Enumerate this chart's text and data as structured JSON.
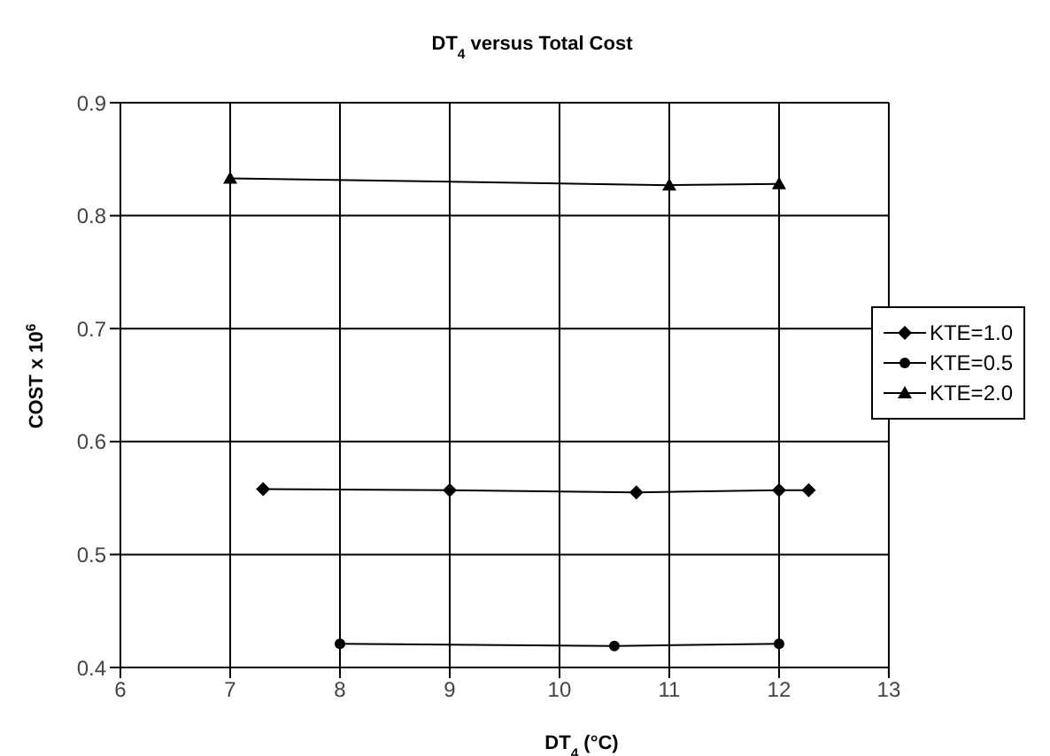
{
  "chart_data": {
    "type": "line",
    "title": "DT$_{4}$ versus Total Cost",
    "xlabel": "DT$_{4}$ (°C)",
    "ylabel": "COST x 10$^{6}$",
    "series": [
      {
        "name": "KTE=1.0",
        "color": "#000000",
        "marker": "diamond",
        "x": [
          7.3,
          9,
          10.7,
          12,
          12.27
        ],
        "values": [
          0.558,
          0.557,
          0.555,
          0.557,
          0.557
        ]
      },
      {
        "name": "KTE=0.5",
        "color": "#000000",
        "marker": "circle",
        "x": [
          8,
          10.5,
          12
        ],
        "values": [
          0.421,
          0.419,
          0.421
        ]
      },
      {
        "name": "KTE=2.0",
        "color": "#000000",
        "marker": "triangle",
        "x": [
          7,
          11,
          12
        ],
        "values": [
          0.833,
          0.827,
          0.828
        ]
      }
    ],
    "xlim": [
      6,
      13
    ],
    "xticks": [
      6,
      7,
      8,
      9,
      10,
      11,
      12,
      13
    ],
    "ylim": [
      0.4,
      0.9
    ],
    "yticks": [
      0.4,
      0.5,
      0.6,
      0.7,
      0.8,
      0.9
    ],
    "grid": true,
    "legend": "right",
    "line_style": "solid"
  }
}
